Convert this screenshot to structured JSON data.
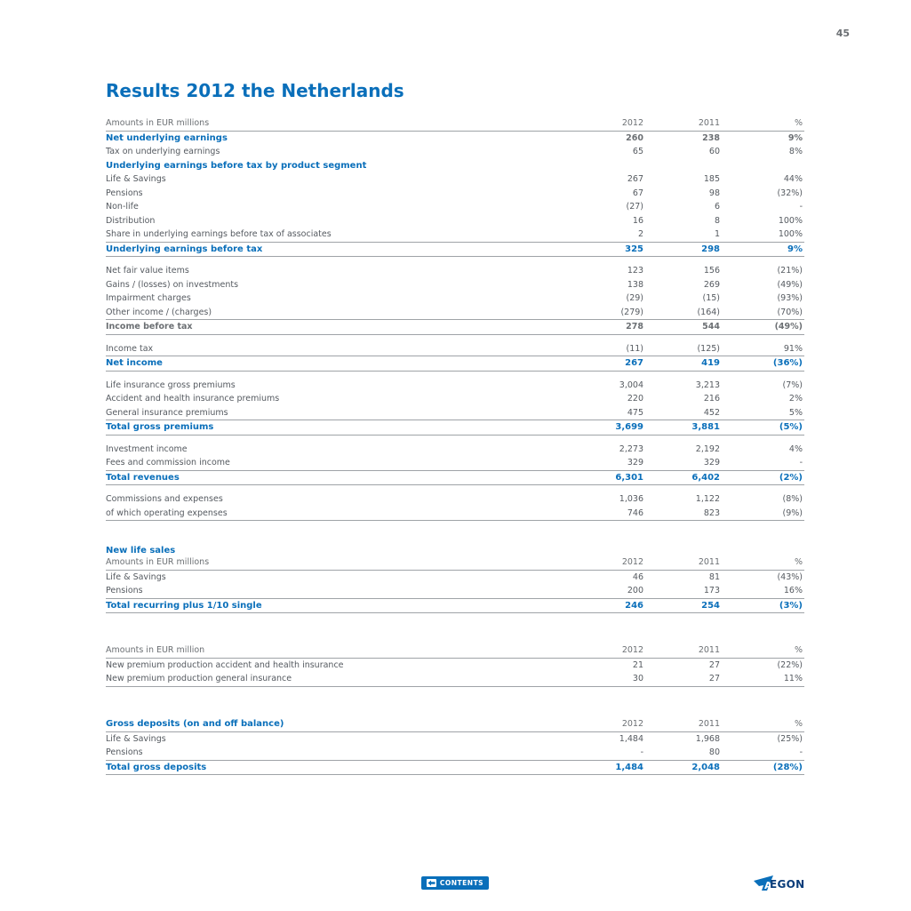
{
  "page": {
    "number": "45",
    "title": "Results 2012 the Netherlands"
  },
  "results": {
    "header": {
      "label": "Amounts in EUR millions",
      "col1": "2012",
      "col2": "2011",
      "col3": "%"
    },
    "rows": [
      {
        "label": "Net underlying earnings",
        "v1": "260",
        "v2": "238",
        "v3": "9%"
      },
      {
        "label": "Tax on underlying earnings",
        "v1": "65",
        "v2": "60",
        "v3": "8%"
      },
      {
        "label": "Underlying earnings before tax by product segment",
        "v1": "",
        "v2": "",
        "v3": ""
      },
      {
        "label": "Life & Savings",
        "v1": "267",
        "v2": "185",
        "v3": "44%"
      },
      {
        "label": "Pensions",
        "v1": "67",
        "v2": "98",
        "v3": "(32%)"
      },
      {
        "label": "Non-life",
        "v1": "(27)",
        "v2": "6",
        "v3": "-"
      },
      {
        "label": "Distribution",
        "v1": "16",
        "v2": "8",
        "v3": "100%"
      },
      {
        "label": "Share in underlying earnings before tax of associates",
        "v1": "2",
        "v2": "1",
        "v3": "100%"
      },
      {
        "label": "Underlying earnings before tax",
        "v1": "325",
        "v2": "298",
        "v3": "9%"
      },
      {
        "label": "Net fair value items",
        "v1": "123",
        "v2": "156",
        "v3": "(21%)"
      },
      {
        "label": "Gains / (losses) on investments",
        "v1": "138",
        "v2": "269",
        "v3": "(49%)"
      },
      {
        "label": "Impairment charges",
        "v1": "(29)",
        "v2": "(15)",
        "v3": "(93%)"
      },
      {
        "label": "Other income / (charges)",
        "v1": "(279)",
        "v2": "(164)",
        "v3": "(70%)"
      },
      {
        "label": "Income before tax",
        "v1": "278",
        "v2": "544",
        "v3": "(49%)"
      },
      {
        "label": "Income tax",
        "v1": "(11)",
        "v2": "(125)",
        "v3": "91%"
      },
      {
        "label": "Net income",
        "v1": "267",
        "v2": "419",
        "v3": "(36%)"
      },
      {
        "label": "Life insurance gross premiums",
        "v1": "3,004",
        "v2": "3,213",
        "v3": "(7%)"
      },
      {
        "label": "Accident and health insurance premiums",
        "v1": "220",
        "v2": "216",
        "v3": "2%"
      },
      {
        "label": "General insurance premiums",
        "v1": "475",
        "v2": "452",
        "v3": "5%"
      },
      {
        "label": "Total gross premiums",
        "v1": "3,699",
        "v2": "3,881",
        "v3": "(5%)"
      },
      {
        "label": "Investment income",
        "v1": "2,273",
        "v2": "2,192",
        "v3": "4%"
      },
      {
        "label": "Fees and commission income",
        "v1": "329",
        "v2": "329",
        "v3": "-"
      },
      {
        "label": "Total revenues",
        "v1": "6,301",
        "v2": "6,402",
        "v3": "(2%)"
      },
      {
        "label": "Commissions and expenses",
        "v1": "1,036",
        "v2": "1,122",
        "v3": "(8%)"
      },
      {
        "label": "of which operating expenses",
        "v1": "746",
        "v2": "823",
        "v3": "(9%)"
      }
    ]
  },
  "life_sales": {
    "title": "New life sales",
    "header": {
      "label": "Amounts in EUR millions",
      "col1": "2012",
      "col2": "2011",
      "col3": "%"
    },
    "rows": [
      {
        "label": "Life & Savings",
        "v1": "46",
        "v2": "81",
        "v3": "(43%)"
      },
      {
        "label": "Pensions",
        "v1": "200",
        "v2": "173",
        "v3": "16%"
      },
      {
        "label": "Total recurring plus 1/10 single",
        "v1": "246",
        "v2": "254",
        "v3": "(3%)"
      }
    ]
  },
  "premium_production": {
    "header": {
      "label": "Amounts in EUR million",
      "col1": "2012",
      "col2": "2011",
      "col3": "%"
    },
    "rows": [
      {
        "label": "New premium production accident and health insurance",
        "v1": "21",
        "v2": "27",
        "v3": "(22%)"
      },
      {
        "label": "New premium production general insurance",
        "v1": "30",
        "v2": "27",
        "v3": "11%"
      }
    ]
  },
  "gross_deposits": {
    "header": {
      "label": "Gross deposits (on and off balance)",
      "col1": "2012",
      "col2": "2011",
      "col3": "%"
    },
    "rows": [
      {
        "label": "Life & Savings",
        "v1": "1,484",
        "v2": "1,968",
        "v3": "(25%)"
      },
      {
        "label": "Pensions",
        "v1": "-",
        "v2": "80",
        "v3": "-"
      },
      {
        "label": "Total gross deposits",
        "v1": "1,484",
        "v2": "2,048",
        "v3": "(28%)"
      }
    ]
  },
  "footer": {
    "contents_label": "CONTENTS",
    "logo_text": "EGON",
    "logo_mark": "A"
  },
  "colors": {
    "accent": "#0a6fba",
    "text": "#555a60",
    "rule": "#9fa3a7"
  },
  "icons": {
    "contents": "back-arrow-icon",
    "logo": "aegon-logo"
  }
}
